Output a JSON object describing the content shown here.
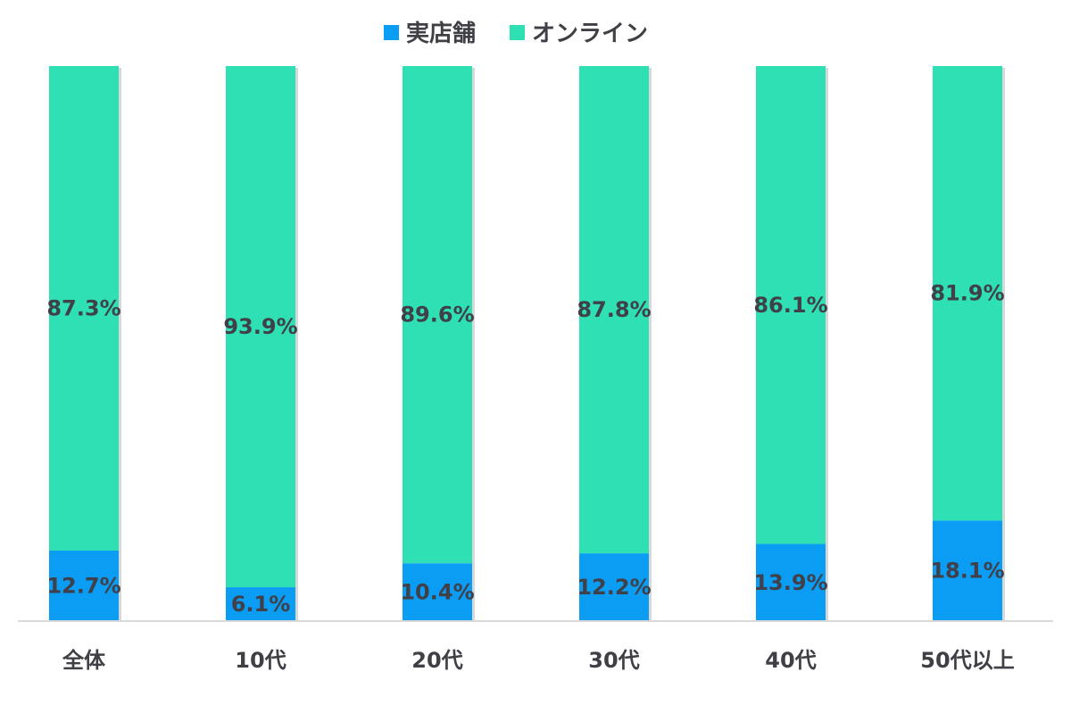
{
  "chart_data": {
    "type": "bar",
    "stacked": true,
    "normalized": true,
    "categories": [
      "全体",
      "10代",
      "20代",
      "30代",
      "40代",
      "50代以上"
    ],
    "series": [
      {
        "name": "実店舗",
        "color": "#0b9cf3",
        "values": [
          12.7,
          6.1,
          10.4,
          12.2,
          13.9,
          18.1
        ],
        "labels": [
          "12.7%",
          "6.1%",
          "10.4%",
          "12.2%",
          "13.9%",
          "18.1%"
        ]
      },
      {
        "name": "オンライン",
        "color": "#2ee0b4",
        "values": [
          87.3,
          93.9,
          89.6,
          87.8,
          86.1,
          81.9
        ],
        "labels": [
          "87.3%",
          "93.9%",
          "89.6%",
          "87.8%",
          "86.1%",
          "81.9%"
        ]
      }
    ],
    "ylim": [
      0,
      100
    ],
    "grid": false,
    "legend_position": "top-center",
    "axis_color": "#d9d9d9"
  }
}
